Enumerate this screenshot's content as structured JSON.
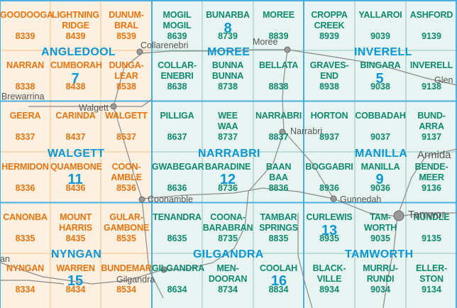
{
  "colors": {
    "orange_bg": "#fdf0e1",
    "green_bg": "#e8f4f2",
    "orange_text": "#e8750f",
    "green_text": "#0e8a6e",
    "region_blue": "#0a97d6",
    "grid_line": "#f3c08a",
    "green_grid_line": "#8cc7bb",
    "border_blue": "#4aaee0",
    "road_gray": "#8a8a8a"
  },
  "cells": [
    {
      "name": "GOODOOGA",
      "num": "8339",
      "zone": "orange",
      "col": 0,
      "row": 0
    },
    {
      "name": "LIGHTNING\nRIDGE",
      "num": "8439",
      "zone": "orange",
      "col": 1,
      "row": 0
    },
    {
      "name": "DUNUM-\nBRAL",
      "num": "8539",
      "zone": "orange",
      "col": 2,
      "row": 0
    },
    {
      "name": "MOGIL\nMOGIL",
      "num": "8639",
      "zone": "green",
      "col": 3,
      "row": 0
    },
    {
      "name": "BUNARBA",
      "num": "8739",
      "zone": "green",
      "col": 4,
      "row": 0
    },
    {
      "name": "MOREE",
      "num": "8839",
      "zone": "green",
      "col": 5,
      "row": 0
    },
    {
      "name": "CROPPA\nCREEK",
      "num": "8939",
      "zone": "green",
      "col": 6,
      "row": 0
    },
    {
      "name": "YALLAROI",
      "num": "9039",
      "zone": "green",
      "col": 7,
      "row": 0
    },
    {
      "name": "ASHFORD",
      "num": "9139",
      "zone": "green",
      "col": 8,
      "row": 0
    },
    {
      "name": "NARRAN",
      "num": "8338",
      "zone": "orange",
      "col": 0,
      "row": 1
    },
    {
      "name": "CUMBORAH",
      "num": "8438",
      "zone": "orange",
      "col": 1,
      "row": 1
    },
    {
      "name": "DUNGA-\nLEAR",
      "num": "8538",
      "zone": "orange",
      "col": 2,
      "row": 1
    },
    {
      "name": "COLLAR-\nENEBRI",
      "num": "8638",
      "zone": "green",
      "col": 3,
      "row": 1
    },
    {
      "name": "BUNNA\nBUNNA",
      "num": "8738",
      "zone": "green",
      "col": 4,
      "row": 1
    },
    {
      "name": "BELLATA",
      "num": "8838",
      "zone": "green",
      "col": 5,
      "row": 1
    },
    {
      "name": "GRAVES-\nEND",
      "num": "8938",
      "zone": "green",
      "col": 6,
      "row": 1
    },
    {
      "name": "BINGARA",
      "num": "9038",
      "zone": "green",
      "col": 7,
      "row": 1
    },
    {
      "name": "INVERELL",
      "num": "9138",
      "zone": "green",
      "col": 8,
      "row": 1
    },
    {
      "name": "GEERA",
      "num": "8337",
      "zone": "orange",
      "col": 0,
      "row": 2
    },
    {
      "name": "CARINDA",
      "num": "8437",
      "zone": "orange",
      "col": 1,
      "row": 2
    },
    {
      "name": "WALGETT",
      "num": "8537",
      "zone": "orange",
      "col": 2,
      "row": 2
    },
    {
      "name": "PILLIGA",
      "num": "8637",
      "zone": "green",
      "col": 3,
      "row": 2
    },
    {
      "name": "WEE\nWAA",
      "num": "8737",
      "zone": "green",
      "col": 4,
      "row": 2
    },
    {
      "name": "NARRABRI",
      "num": "8837",
      "zone": "green",
      "col": 5,
      "row": 2
    },
    {
      "name": "HORTON",
      "num": "8937",
      "zone": "green",
      "col": 6,
      "row": 2
    },
    {
      "name": "COBBADAH",
      "num": "9037",
      "zone": "green",
      "col": 7,
      "row": 2
    },
    {
      "name": "BUND-\nARRA",
      "num": "9137",
      "zone": "green",
      "col": 8,
      "row": 2
    },
    {
      "name": "HERMIDON",
      "num": "8336",
      "zone": "orange",
      "col": 0,
      "row": 3
    },
    {
      "name": "QUAMBONE",
      "num": "8436",
      "zone": "orange",
      "col": 1,
      "row": 3
    },
    {
      "name": "COON-\nAMBLE",
      "num": "8536",
      "zone": "orange",
      "col": 2,
      "row": 3
    },
    {
      "name": "GWABEGAR",
      "num": "8636",
      "zone": "green",
      "col": 3,
      "row": 3
    },
    {
      "name": "BARADINE",
      "num": "8736",
      "zone": "green",
      "col": 4,
      "row": 3
    },
    {
      "name": "BAAN\nBAA",
      "num": "8836",
      "zone": "green",
      "col": 5,
      "row": 3
    },
    {
      "name": "BOGGABRI",
      "num": "8936",
      "zone": "green",
      "col": 6,
      "row": 3
    },
    {
      "name": "MANILLA",
      "num": "9036",
      "zone": "green",
      "col": 7,
      "row": 3
    },
    {
      "name": "BENDE-\nMEER",
      "num": "9136",
      "zone": "green",
      "col": 8,
      "row": 3
    },
    {
      "name": "CANONBA",
      "num": "8335",
      "zone": "orange",
      "col": 0,
      "row": 4
    },
    {
      "name": "MOUNT\nHARRIS",
      "num": "8435",
      "zone": "orange",
      "col": 1,
      "row": 4
    },
    {
      "name": "GULAR-\nGAMBONE",
      "num": "8535",
      "zone": "orange",
      "col": 2,
      "row": 4
    },
    {
      "name": "TENANDRA",
      "num": "8635",
      "zone": "green",
      "col": 3,
      "row": 4
    },
    {
      "name": "COONA-\nBARABRAN",
      "num": "8735",
      "zone": "green",
      "col": 4,
      "row": 4
    },
    {
      "name": "TAMBAR\nSPRINGS",
      "num": "8835",
      "zone": "green",
      "col": 5,
      "row": 4
    },
    {
      "name": "CURLEWIS",
      "num": "8935",
      "zone": "green",
      "col": 6,
      "row": 4
    },
    {
      "name": "TAM-\nWORTH",
      "num": "9035",
      "zone": "green",
      "col": 7,
      "row": 4
    },
    {
      "name": "NUNDLE",
      "num": "9135",
      "zone": "green",
      "col": 8,
      "row": 4
    },
    {
      "name": "NYNGAN",
      "num": "8334",
      "zone": "orange",
      "col": 0,
      "row": 5
    },
    {
      "name": "WARREN",
      "num": "8434",
      "zone": "orange",
      "col": 1,
      "row": 5
    },
    {
      "name": "BUNDEMAR",
      "num": "8534",
      "zone": "orange",
      "col": 2,
      "row": 5
    },
    {
      "name": "GILGANDRA",
      "num": "8634",
      "zone": "green",
      "col": 3,
      "row": 5
    },
    {
      "name": "MEN-\nDOORAN",
      "num": "8734",
      "zone": "green",
      "col": 4,
      "row": 5
    },
    {
      "name": "COOLAH",
      "num": "8834",
      "zone": "green",
      "col": 5,
      "row": 5
    },
    {
      "name": "BLACK-\nVILLE",
      "num": "8934",
      "zone": "green",
      "col": 6,
      "row": 5
    },
    {
      "name": "MURRU-\nRUNDI",
      "num": "9034",
      "zone": "green",
      "col": 7,
      "row": 5
    },
    {
      "name": "ELLER-\nSTON",
      "num": "9134",
      "zone": "green",
      "col": 8,
      "row": 5
    }
  ],
  "sheet_numbers": [
    {
      "text": "8",
      "zone": "green",
      "block": "moree"
    },
    {
      "text": "5",
      "zone": "green",
      "block": "inverell"
    },
    {
      "text": "7",
      "zone": "orange",
      "block": "angledool"
    },
    {
      "text": "11",
      "zone": "orange",
      "block": "walgett"
    },
    {
      "text": "12",
      "zone": "green",
      "block": "narrabri"
    },
    {
      "text": "9",
      "zone": "green",
      "block": "manilla"
    },
    {
      "text": "15",
      "zone": "orange",
      "block": "nyngan"
    },
    {
      "text": "16",
      "zone": "green",
      "block": "gilgandra"
    },
    {
      "text": "13",
      "zone": "green",
      "block": "tamworth"
    }
  ],
  "regions": [
    {
      "text": "ANGLEDOOL",
      "id": "angledool"
    },
    {
      "text": "MOREE",
      "id": "moree"
    },
    {
      "text": "INVERELL",
      "id": "inverell"
    },
    {
      "text": "WALGETT",
      "id": "walgett"
    },
    {
      "text": "NARRABRI",
      "id": "narrabri"
    },
    {
      "text": "MANILLA",
      "id": "manilla"
    },
    {
      "text": "NYNGAN",
      "id": "nyngan"
    },
    {
      "text": "GILGANDRA",
      "id": "gilgandra"
    },
    {
      "text": "TAMWORTH",
      "id": "tamworth"
    }
  ],
  "towns": [
    {
      "text": "Collarenebri",
      "id": "collarenebri"
    },
    {
      "text": "Moree",
      "id": "moree"
    },
    {
      "text": "Brewarrina",
      "id": "brewarrina"
    },
    {
      "text": "Walgett",
      "id": "walgett"
    },
    {
      "text": "Glen",
      "id": "glen"
    },
    {
      "text": "Narrabri",
      "id": "narrabri"
    },
    {
      "text": "Armida",
      "id": "armida"
    },
    {
      "text": "Coonamble",
      "id": "coonamble"
    },
    {
      "text": "Gunnedah",
      "id": "gunnedah"
    },
    {
      "text": "Tamwor",
      "id": "tamworth"
    },
    {
      "text": "Gilgandra",
      "id": "gilgandra"
    },
    {
      "text": "an",
      "id": "nyngan-town"
    }
  ]
}
